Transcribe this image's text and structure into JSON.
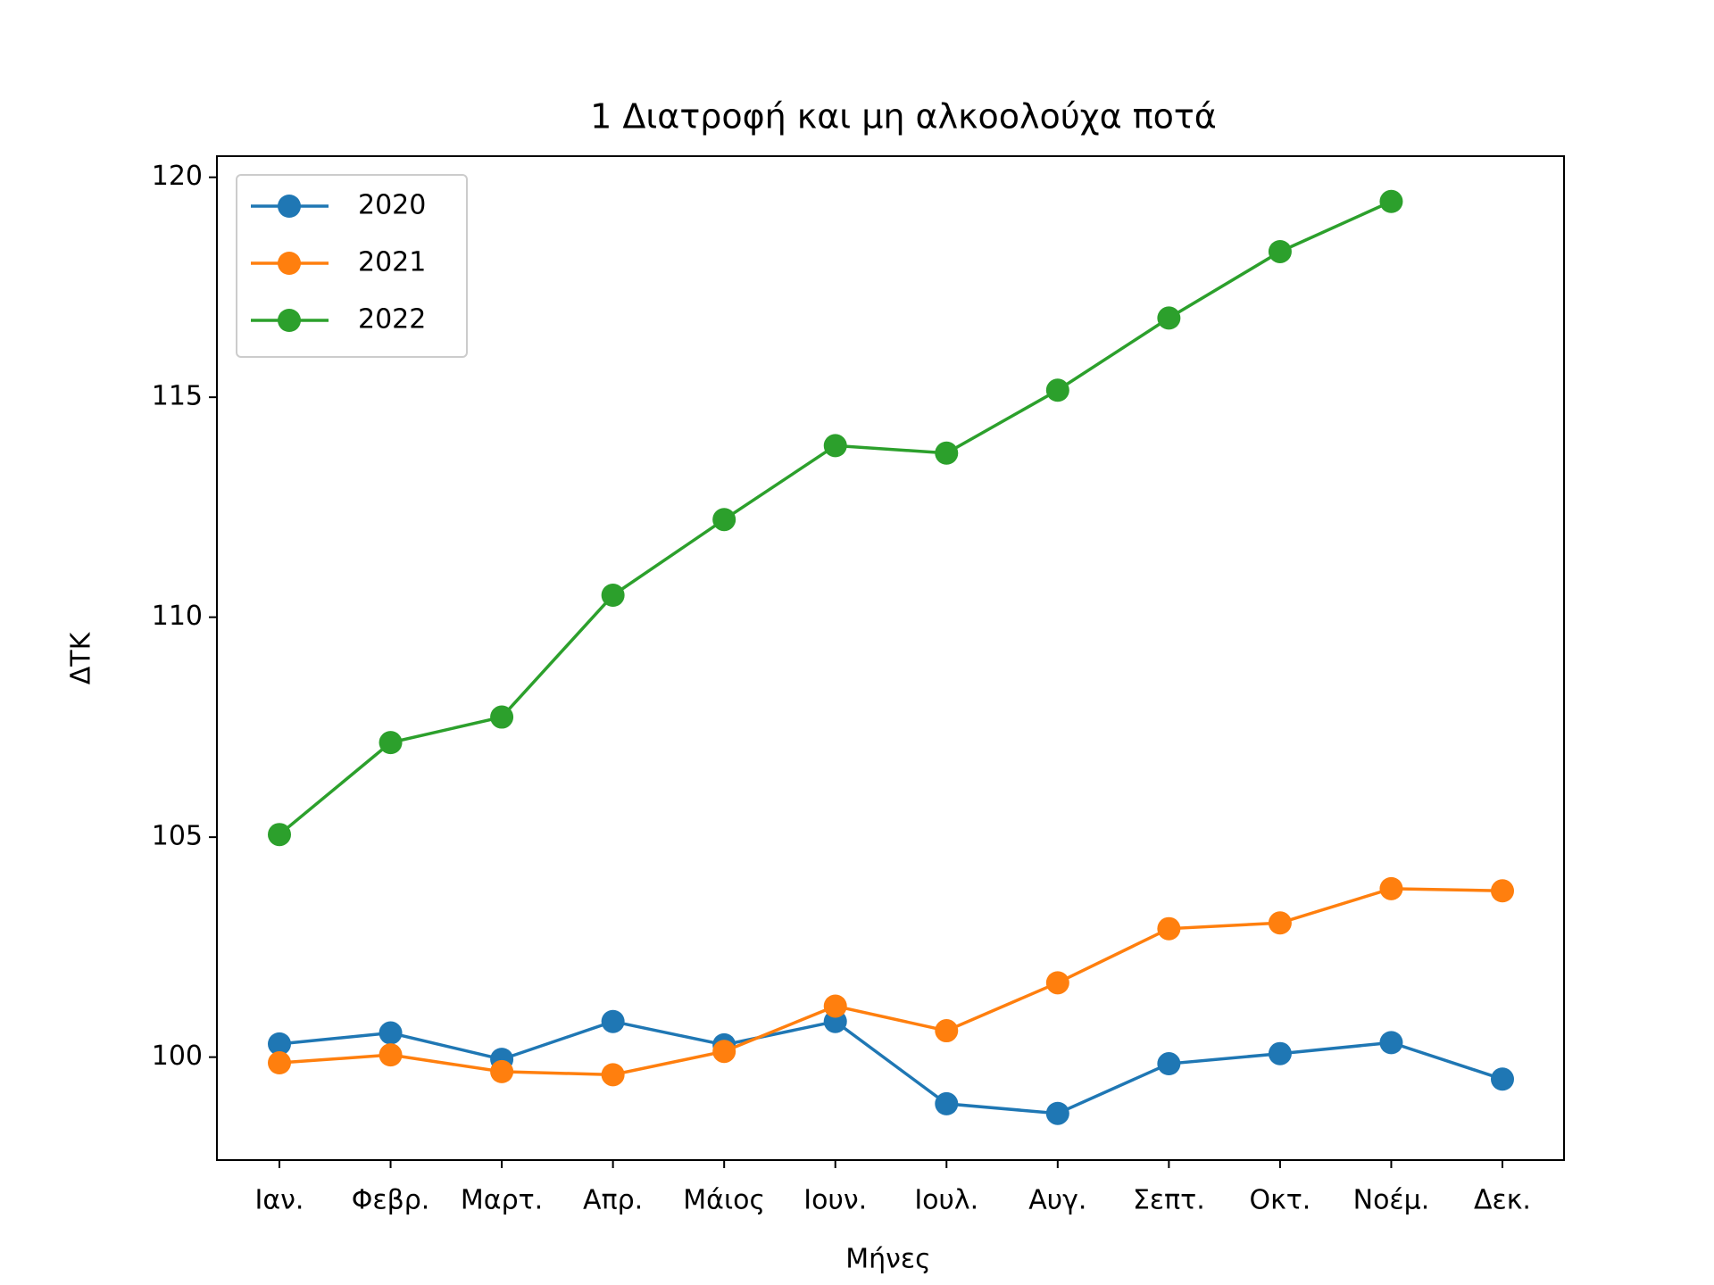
{
  "chart_data": {
    "type": "line",
    "title": "1  Διατροφή και μη αλκοολούχα ποτά",
    "xlabel": "Μήνες",
    "ylabel": "ΔΤΚ",
    "categories": [
      "Ιαν.",
      "Φεβρ.",
      "Μαρτ.",
      "Απρ.",
      "Μάιος",
      "Ιουν.",
      "Ιουλ.",
      "Αυγ.",
      "Σεπτ.",
      "Οκτ.",
      "Νοέμ.",
      "Δεκ."
    ],
    "series": [
      {
        "name": "2020",
        "color": "#1f77b4",
        "values": [
          100.3,
          100.55,
          99.95,
          100.81,
          100.28,
          100.81,
          98.94,
          98.72,
          99.85,
          100.08,
          100.33,
          99.5
        ]
      },
      {
        "name": "2021",
        "color": "#ff7f0e",
        "values": [
          99.87,
          100.05,
          99.67,
          99.6,
          100.13,
          101.16,
          100.6,
          101.69,
          102.92,
          103.05,
          103.83,
          103.78
        ]
      },
      {
        "name": "2022",
        "color": "#2ca02c",
        "values": [
          105.06,
          107.15,
          107.73,
          110.5,
          112.22,
          113.9,
          113.73,
          115.16,
          116.8,
          118.31,
          119.45,
          null
        ]
      }
    ],
    "ylim": [
      97.66,
      120.48
    ],
    "yticks": [
      100,
      105,
      110,
      115,
      120
    ],
    "legend": "upper left",
    "grid": false
  }
}
